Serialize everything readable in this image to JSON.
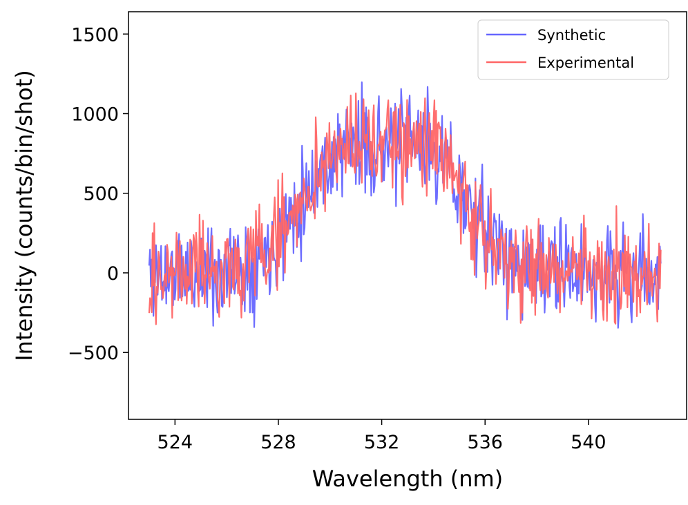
{
  "chart_data": {
    "type": "line",
    "title": "",
    "xlabel": "Wavelength (nm)",
    "ylabel": "Intensity (counts/bin/shot)",
    "xlim": [
      522.2,
      543.8
    ],
    "ylim": [
      -920,
      1640
    ],
    "xticks": [
      {
        "value": 524,
        "label": "524"
      },
      {
        "value": 528,
        "label": "528"
      },
      {
        "value": 532,
        "label": "532"
      },
      {
        "value": 536,
        "label": "536"
      },
      {
        "value": 540,
        "label": "540"
      }
    ],
    "yticks": [
      {
        "value": -500,
        "label": "−500"
      },
      {
        "value": 0,
        "label": "0"
      },
      {
        "value": 500,
        "label": "500"
      },
      {
        "value": 1000,
        "label": "1000"
      },
      {
        "value": 1500,
        "label": "1500"
      }
    ],
    "grid": false,
    "legend_position": "top-right",
    "x_range": [
      523.0,
      542.8
    ],
    "num_points": 600,
    "series": [
      {
        "name": "Synthetic",
        "color": "#6666ff",
        "opacity": 0.95,
        "seed": 11,
        "noise_amplitude": 340,
        "peaks": [
          {
            "center": 530.5,
            "height": 720,
            "width": 1.7
          },
          {
            "center": 533.9,
            "height": 680,
            "width": 1.5
          }
        ],
        "baseline": 0
      },
      {
        "name": "Experimental",
        "color": "#ff6666",
        "opacity": 0.95,
        "seed": 29,
        "noise_amplitude": 340,
        "peaks": [
          {
            "center": 530.5,
            "height": 720,
            "width": 1.7
          },
          {
            "center": 533.9,
            "height": 680,
            "width": 1.5
          }
        ],
        "baseline": 0
      }
    ]
  }
}
